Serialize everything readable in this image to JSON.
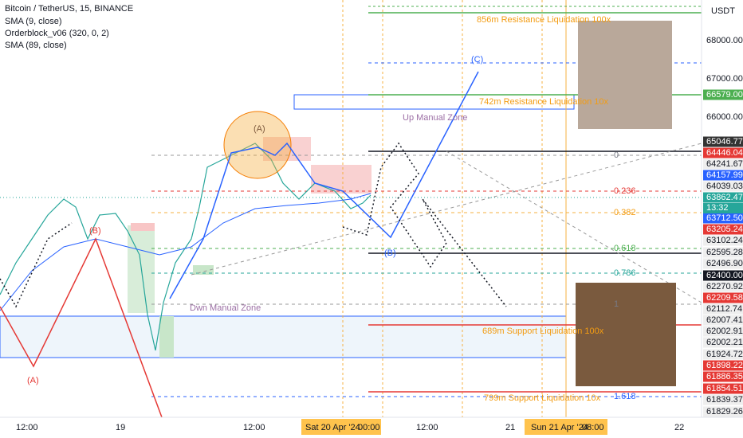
{
  "header": {
    "symbol": "Bitcoin / TetherUS, 15, BINANCE",
    "indicators": [
      "SMA (9, close)",
      "Orderblock_v06 (320, 0, 2)",
      "SMA (89, close)"
    ]
  },
  "price_axis": {
    "unit": "USDT",
    "countdown": "13:32",
    "labels": [
      {
        "text": "68000.00",
        "color": "none"
      },
      {
        "text": "67000.00",
        "color": "none"
      },
      {
        "text": "66579.00",
        "color": "#4caf50"
      },
      {
        "text": "66000.00",
        "color": "none"
      },
      {
        "text": "65046.77",
        "color": "#333333"
      },
      {
        "text": "64446.04",
        "color": "#e53935"
      },
      {
        "text": "64241.67",
        "color": "#eeeeee"
      },
      {
        "text": "64157.99",
        "color": "#2962ff"
      },
      {
        "text": "64039.03",
        "color": "#eeeeee"
      },
      {
        "text": "63862.47",
        "color": "#26a69a"
      },
      {
        "text": "63712.50",
        "color": "#2962ff"
      },
      {
        "text": "63205.24",
        "color": "#e53935"
      },
      {
        "text": "63102.24",
        "color": "#eeeeee"
      },
      {
        "text": "62595.28",
        "color": "#eeeeee"
      },
      {
        "text": "62496.90",
        "color": "#eeeeee"
      },
      {
        "text": "62400.00",
        "color": "#131722"
      },
      {
        "text": "62270.92",
        "color": "#eeeeee"
      },
      {
        "text": "62209.58",
        "color": "#e53935"
      },
      {
        "text": "62112.74",
        "color": "#eeeeee"
      },
      {
        "text": "62007.41",
        "color": "#eeeeee"
      },
      {
        "text": "62002.91",
        "color": "#eeeeee"
      },
      {
        "text": "62002.21",
        "color": "#eeeeee"
      },
      {
        "text": "61924.72",
        "color": "#eeeeee"
      },
      {
        "text": "61898.22",
        "color": "#e53935"
      },
      {
        "text": "61886.35",
        "color": "#e53935"
      },
      {
        "text": "61854.51",
        "color": "#e53935"
      },
      {
        "text": "61839.37",
        "color": "#eeeeee"
      },
      {
        "text": "61829.26",
        "color": "#eeeeee"
      }
    ]
  },
  "time_axis": {
    "labels": [
      "12:00",
      "19",
      "12:00",
      "Sat 20 Apr '24",
      "00:00",
      "12:00",
      "21",
      "Sun 21 Apr '24",
      "08:00",
      "22"
    ]
  },
  "annotations": {
    "res_100x": "856m Resistance Liquidation 100x",
    "res_10x": "742m Resistance Liquidation 10x",
    "up_zone": "Up Manual Zone",
    "dwn_zone": "Dwn Manual Zone",
    "wave_a": "(A)",
    "wave_c": "(C)",
    "wave_b": "(B)",
    "red_b": "(B)",
    "red_a": "(A)",
    "fib": [
      "0",
      "0.236",
      "0.382",
      "0.618",
      "0.786",
      "1",
      "1.618"
    ],
    "sup_100x": "689m Support Liquidation 100x",
    "sup_10x": "799m Support Liquidation 10x"
  }
}
